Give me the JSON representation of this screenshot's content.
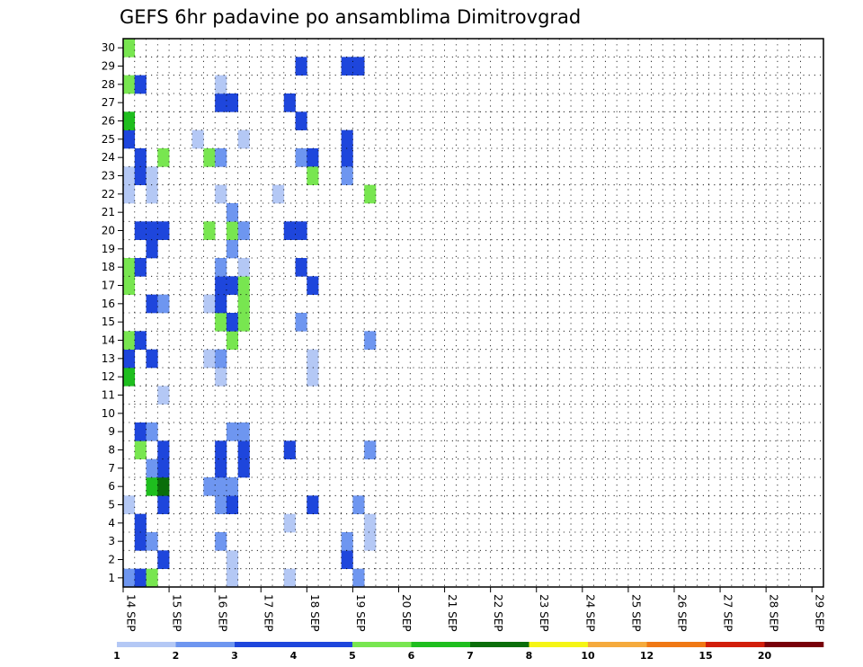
{
  "chart_data": {
    "type": "heatmap",
    "title": "GEFS 6hr padavine po ansamblima Dimitrovgrad",
    "xlabel": "",
    "ylabel": "",
    "x_tick_labels": [
      "14 SEP",
      "15 SEP",
      "16 SEP",
      "17 SEP",
      "18 SEP",
      "19 SEP",
      "20 SEP",
      "21 SEP",
      "22 SEP",
      "23 SEP",
      "24 SEP",
      "25 SEP",
      "26 SEP",
      "27 SEP",
      "28 SEP",
      "29 SEP"
    ],
    "y_tick_labels": [
      "1",
      "2",
      "3",
      "4",
      "5",
      "6",
      "7",
      "8",
      "9",
      "10",
      "11",
      "12",
      "13",
      "14",
      "15",
      "16",
      "17",
      "18",
      "19",
      "20",
      "21",
      "22",
      "23",
      "24",
      "25",
      "26",
      "27",
      "28",
      "29",
      "30"
    ],
    "x_unit": "6h step (day = 4 steps)",
    "x_range": [
      0,
      61
    ],
    "y_range": [
      1,
      30
    ],
    "grid": true,
    "color_scale": {
      "labels": [
        "1",
        "2",
        "3",
        "4",
        "5",
        "6",
        "7",
        "8",
        "10",
        "12",
        "15",
        "20"
      ],
      "colors": [
        "#b4c8f5",
        "#6e96f0",
        "#1e46dc",
        "#1e46dc",
        "#78e650",
        "#1ebe1e",
        "#0a6e0a",
        "#f5f514",
        "#f5aa3c",
        "#f07814",
        "#d21e0a",
        "#78000a"
      ],
      "levels": [
        1,
        2,
        3,
        4,
        5,
        6,
        7,
        8,
        10,
        12,
        15,
        20
      ]
    },
    "cells": [
      [
        0,
        1,
        2
      ],
      [
        0,
        5,
        1
      ],
      [
        0,
        12,
        6
      ],
      [
        0,
        13,
        3
      ],
      [
        0,
        14,
        5
      ],
      [
        0,
        17,
        5
      ],
      [
        0,
        18,
        5
      ],
      [
        0,
        22,
        1
      ],
      [
        0,
        23,
        1
      ],
      [
        0,
        25,
        3
      ],
      [
        0,
        26,
        6
      ],
      [
        0,
        28,
        5
      ],
      [
        0,
        30,
        5
      ],
      [
        1,
        1,
        3
      ],
      [
        1,
        3,
        3
      ],
      [
        1,
        4,
        3
      ],
      [
        1,
        8,
        5
      ],
      [
        1,
        9,
        3
      ],
      [
        1,
        14,
        3
      ],
      [
        1,
        18,
        3
      ],
      [
        1,
        20,
        4
      ],
      [
        1,
        23,
        4
      ],
      [
        1,
        24,
        3
      ],
      [
        1,
        28,
        4
      ],
      [
        2,
        1,
        5
      ],
      [
        2,
        3,
        2
      ],
      [
        2,
        6,
        6
      ],
      [
        2,
        7,
        2
      ],
      [
        2,
        9,
        2
      ],
      [
        2,
        13,
        3
      ],
      [
        2,
        16,
        3
      ],
      [
        2,
        19,
        3
      ],
      [
        2,
        20,
        4
      ],
      [
        2,
        22,
        1
      ],
      [
        2,
        23,
        1
      ],
      [
        3,
        2,
        3
      ],
      [
        3,
        5,
        3
      ],
      [
        3,
        6,
        7
      ],
      [
        3,
        7,
        3
      ],
      [
        3,
        8,
        3
      ],
      [
        3,
        11,
        1
      ],
      [
        3,
        16,
        2
      ],
      [
        3,
        20,
        4
      ],
      [
        3,
        24,
        5
      ],
      [
        6,
        25,
        1
      ],
      [
        7,
        6,
        2
      ],
      [
        7,
        13,
        1
      ],
      [
        7,
        16,
        1
      ],
      [
        7,
        20,
        5
      ],
      [
        7,
        24,
        5
      ],
      [
        8,
        3,
        2
      ],
      [
        8,
        5,
        2
      ],
      [
        8,
        6,
        2
      ],
      [
        8,
        7,
        3
      ],
      [
        8,
        8,
        4
      ],
      [
        8,
        12,
        1
      ],
      [
        8,
        13,
        2
      ],
      [
        8,
        15,
        5
      ],
      [
        8,
        16,
        4
      ],
      [
        8,
        17,
        4
      ],
      [
        8,
        18,
        2
      ],
      [
        8,
        22,
        1
      ],
      [
        8,
        24,
        2
      ],
      [
        8,
        27,
        4
      ],
      [
        8,
        28,
        1
      ],
      [
        9,
        1,
        1
      ],
      [
        9,
        2,
        1
      ],
      [
        9,
        5,
        3
      ],
      [
        9,
        6,
        2
      ],
      [
        9,
        9,
        2
      ],
      [
        9,
        14,
        5
      ],
      [
        9,
        15,
        4
      ],
      [
        9,
        17,
        4
      ],
      [
        9,
        19,
        2
      ],
      [
        9,
        20,
        5
      ],
      [
        9,
        21,
        2
      ],
      [
        9,
        27,
        4
      ],
      [
        10,
        7,
        4
      ],
      [
        10,
        8,
        4
      ],
      [
        10,
        9,
        2
      ],
      [
        10,
        15,
        5
      ],
      [
        10,
        16,
        5
      ],
      [
        10,
        17,
        5
      ],
      [
        10,
        18,
        1
      ],
      [
        10,
        20,
        2
      ],
      [
        10,
        25,
        1
      ],
      [
        13,
        22,
        1
      ],
      [
        14,
        1,
        1
      ],
      [
        14,
        4,
        1
      ],
      [
        14,
        8,
        3
      ],
      [
        14,
        20,
        3
      ],
      [
        14,
        27,
        3
      ],
      [
        15,
        18,
        3
      ],
      [
        15,
        20,
        3
      ],
      [
        15,
        15,
        2
      ],
      [
        15,
        24,
        2
      ],
      [
        15,
        26,
        4
      ],
      [
        15,
        29,
        4
      ],
      [
        16,
        5,
        3
      ],
      [
        16,
        12,
        1
      ],
      [
        16,
        13,
        1
      ],
      [
        16,
        17,
        3
      ],
      [
        16,
        24,
        4
      ],
      [
        16,
        23,
        5
      ],
      [
        19,
        2,
        3
      ],
      [
        19,
        3,
        2
      ],
      [
        19,
        24,
        4
      ],
      [
        19,
        25,
        4
      ],
      [
        19,
        23,
        2
      ],
      [
        19,
        29,
        3
      ],
      [
        20,
        1,
        2
      ],
      [
        20,
        5,
        2
      ],
      [
        20,
        29,
        4
      ],
      [
        21,
        3,
        1
      ],
      [
        21,
        4,
        1
      ],
      [
        21,
        8,
        2
      ],
      [
        21,
        14,
        2
      ],
      [
        21,
        22,
        5
      ]
    ]
  }
}
